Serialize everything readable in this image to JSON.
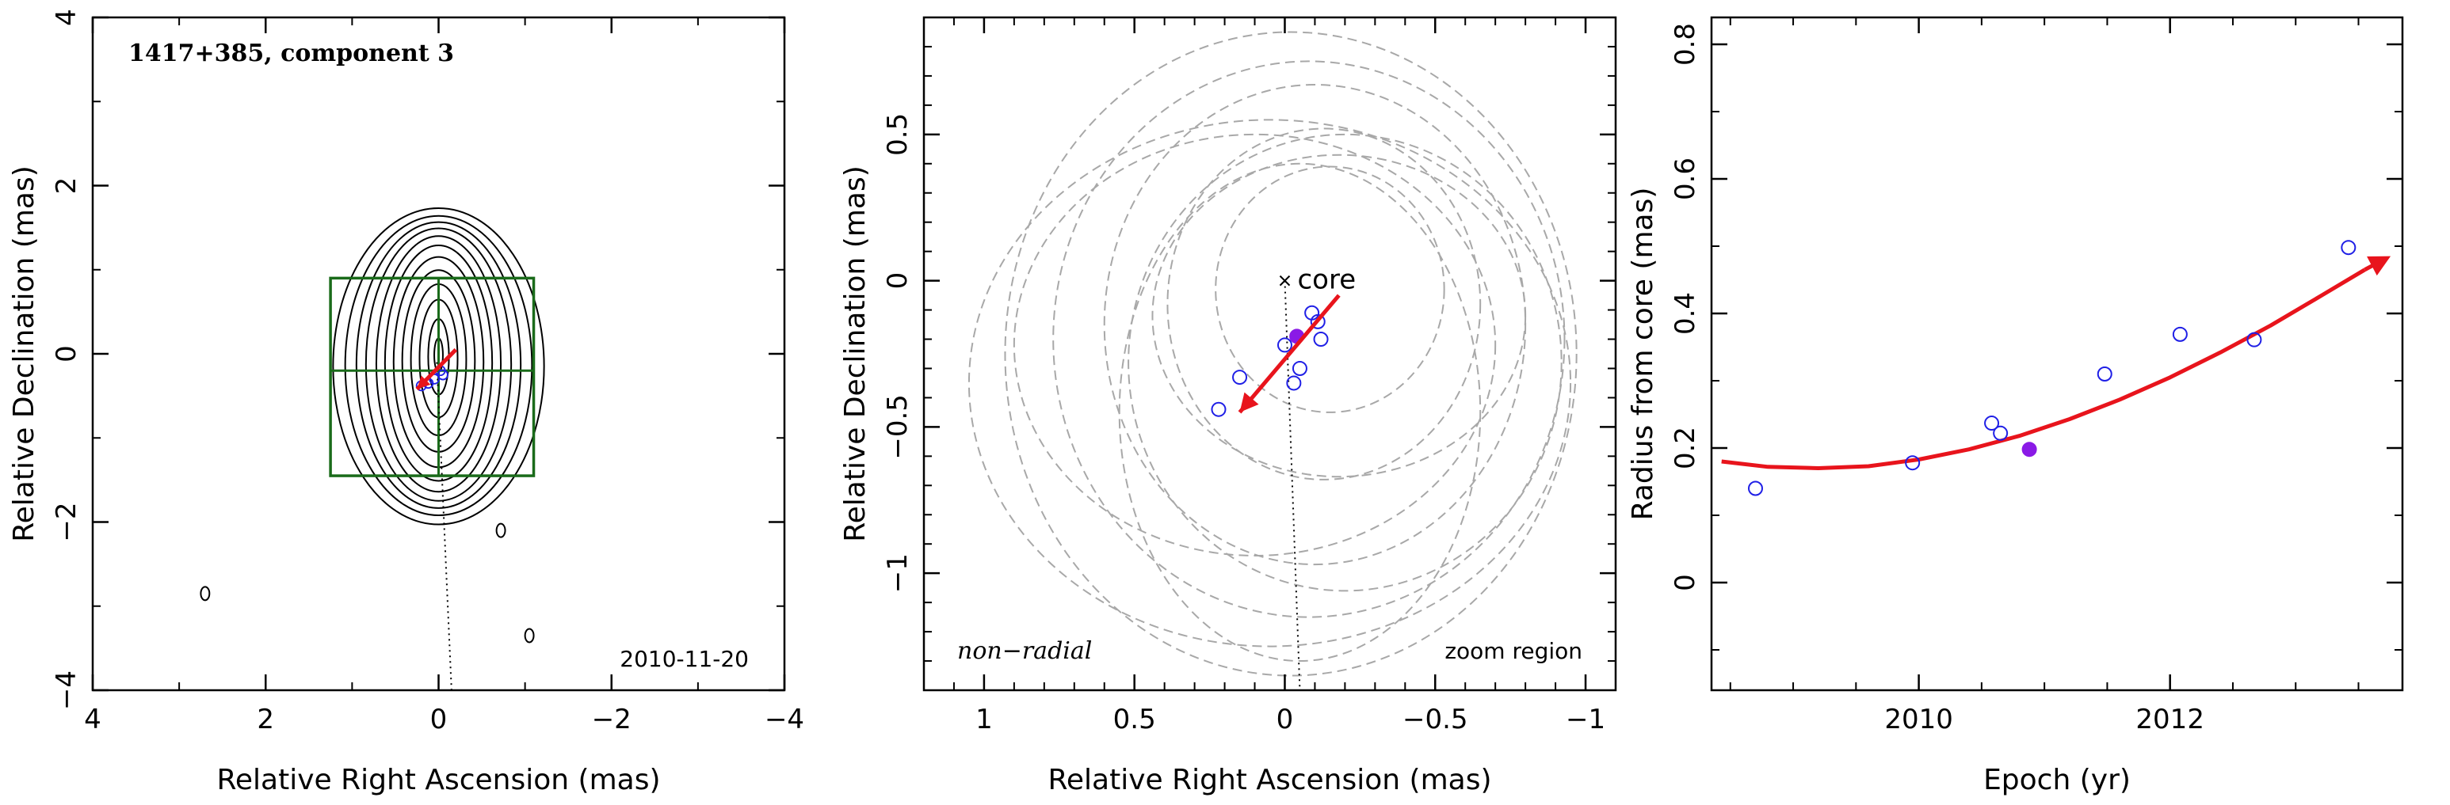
{
  "chart_data": [
    {
      "type": "contour",
      "title": "1417+385, component 3",
      "epoch_label": "2010-11-20",
      "xlabel": "Relative Right Ascension (mas)",
      "ylabel": "Relative Declination (mas)",
      "xlim": [
        4,
        -4
      ],
      "ylim": [
        -4,
        4
      ],
      "xticks": [
        "4",
        "2",
        "0",
        "−2",
        "−4"
      ],
      "yticks": [
        "−4",
        "−2",
        "0",
        "2",
        "4"
      ],
      "contour_center": [
        0,
        0
      ],
      "contour_semi_axes": [
        [
          0.05,
          0.2
        ],
        [
          0.12,
          0.45
        ],
        [
          0.22,
          0.7
        ],
        [
          0.32,
          0.9
        ],
        [
          0.42,
          1.08
        ],
        [
          0.52,
          1.25
        ],
        [
          0.62,
          1.4
        ],
        [
          0.72,
          1.52
        ],
        [
          0.84,
          1.62
        ],
        [
          0.95,
          1.7
        ],
        [
          1.08,
          1.78
        ],
        [
          1.22,
          1.88
        ]
      ],
      "box": {
        "x_min": -1.1,
        "x_max": 1.25,
        "y_min": -1.45,
        "y_max": 0.9,
        "cross_x": 0,
        "cross_y": -0.2,
        "color": "#1a6b1a"
      },
      "points_open": [
        [
          0.05,
          -0.3
        ],
        [
          -0.05,
          -0.25
        ],
        [
          0.12,
          -0.35
        ],
        [
          0.2,
          -0.38
        ],
        [
          -0.02,
          -0.2
        ]
      ],
      "arrow": {
        "from": [
          -0.2,
          0.05
        ],
        "to": [
          0.25,
          -0.42
        ],
        "color": "#e8141c"
      },
      "ridge_line": {
        "from": [
          0.02,
          -0.1
        ],
        "to": [
          -0.15,
          -4
        ],
        "style": "dotted"
      },
      "stray_contours": [
        [
          2.7,
          -2.85
        ],
        [
          -0.72,
          -2.1
        ],
        [
          -1.05,
          -3.35
        ]
      ]
    },
    {
      "type": "scatter",
      "xlabel": "Relative Right Ascension (mas)",
      "ylabel": "Relative Declination (mas)",
      "xlim": [
        1.2,
        -1.1
      ],
      "ylim": [
        -1.4,
        0.9
      ],
      "xticks": [
        "1",
        "0.5",
        "0",
        "−0.5",
        "−1"
      ],
      "yticks": [
        "−1",
        "−0.5",
        "0",
        "0.5"
      ],
      "core_label": "core",
      "annotations": {
        "left": "non−radial",
        "right": "zoom region"
      },
      "points_open": [
        [
          0.22,
          -0.44
        ],
        [
          0.15,
          -0.33
        ],
        [
          0.0,
          -0.22
        ],
        [
          -0.09,
          -0.11
        ],
        [
          -0.11,
          -0.14
        ],
        [
          -0.12,
          -0.2
        ],
        [
          -0.05,
          -0.3
        ],
        [
          -0.03,
          -0.35
        ]
      ],
      "points_filled": [
        [
          -0.04,
          -0.19
        ]
      ],
      "arrow": {
        "from": [
          -0.18,
          -0.05
        ],
        "to": [
          0.15,
          -0.45
        ],
        "color": "#e8141c"
      },
      "ridge_line": {
        "from": [
          0.0,
          0.0
        ],
        "to": [
          -0.05,
          -1.4
        ],
        "style": "dotted"
      },
      "ellipses": [
        {
          "cx": -0.02,
          "cy": -0.25,
          "rx": 0.95,
          "ry": 1.1
        },
        {
          "cx": -0.08,
          "cy": -0.2,
          "rx": 0.85,
          "ry": 0.95
        },
        {
          "cx": -0.1,
          "cy": -0.15,
          "rx": 0.7,
          "ry": 0.82
        },
        {
          "cx": -0.13,
          "cy": -0.08,
          "rx": 0.52,
          "ry": 0.6
        },
        {
          "cx": -0.15,
          "cy": -0.03,
          "rx": 0.38,
          "ry": 0.42
        },
        {
          "cx": 0.05,
          "cy": -0.35,
          "rx": 1.0,
          "ry": 0.9
        },
        {
          "cx": -0.2,
          "cy": -0.28,
          "rx": 0.72,
          "ry": 0.78
        },
        {
          "cx": -0.05,
          "cy": -0.45,
          "rx": 0.6,
          "ry": 0.85
        },
        {
          "cx": -0.18,
          "cy": -0.12,
          "rx": 0.62,
          "ry": 0.55
        },
        {
          "cx": 0.1,
          "cy": -0.22,
          "rx": 0.8,
          "ry": 0.72
        }
      ]
    },
    {
      "type": "scatter",
      "xlabel": "Epoch (yr)",
      "ylabel": "Radius from core (mas)",
      "xlim": [
        2008.35,
        2013.85
      ],
      "ylim": [
        -0.16,
        0.84
      ],
      "xticks": [
        "2010",
        "2012"
      ],
      "yticks": [
        "0",
        "0.2",
        "0.4",
        "0.6",
        "0.8"
      ],
      "points_open": [
        [
          2008.7,
          0.14
        ],
        [
          2009.95,
          0.178
        ],
        [
          2010.58,
          0.237
        ],
        [
          2010.65,
          0.222
        ],
        [
          2011.48,
          0.31
        ],
        [
          2012.08,
          0.369
        ],
        [
          2012.67,
          0.361
        ],
        [
          2013.42,
          0.498
        ]
      ],
      "points_filled": [
        [
          2010.88,
          0.198
        ]
      ],
      "fit_curve": {
        "x": [
          2008.43,
          2008.8,
          2009.2,
          2009.6,
          2010.0,
          2010.4,
          2010.8,
          2011.2,
          2011.6,
          2012.0,
          2012.4,
          2012.8,
          2013.2,
          2013.55
        ],
        "y": [
          0.18,
          0.172,
          0.17,
          0.173,
          0.183,
          0.198,
          0.218,
          0.243,
          0.272,
          0.305,
          0.342,
          0.382,
          0.426,
          0.465
        ],
        "color": "#e8141c",
        "arrow_end": true
      }
    }
  ],
  "colors": {
    "open_marker": "#1f1fe6",
    "filled_marker": "#8a1ae6",
    "arrow": "#e8141c",
    "box": "#1a6b1a",
    "ellipse": "#a8a8a8"
  }
}
